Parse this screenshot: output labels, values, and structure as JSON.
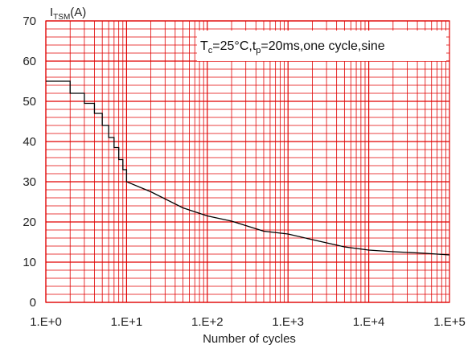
{
  "chart_data": {
    "type": "line",
    "xscale": "log",
    "yscale": "linear",
    "xlim": [
      1,
      100000
    ],
    "ylim": [
      0,
      70
    ],
    "xlabel": "Number of cycles",
    "ylabel_main": "I",
    "ylabel_sub": "TSM",
    "ylabel_unit": "(A)",
    "annotation": {
      "t1": "T",
      "t1_sub": "c",
      "mid": "=25°C,t",
      "t2_sub": "p",
      "tail": "=20ms,one cycle,sine"
    },
    "x_ticks": [
      {
        "value": 1,
        "label": "1.E+0"
      },
      {
        "value": 10,
        "label": "1.E+1"
      },
      {
        "value": 100,
        "label": "1.E+2"
      },
      {
        "value": 1000,
        "label": "1.E+3"
      },
      {
        "value": 10000,
        "label": "1.E+4"
      },
      {
        "value": 100000,
        "label": "1.E+5"
      }
    ],
    "y_ticks": [
      0,
      10,
      20,
      30,
      40,
      50,
      60,
      70
    ],
    "grid": true,
    "grid_color": "#e00000",
    "line_color": "#000000",
    "series": [
      {
        "values": [
          {
            "x": 1,
            "y": 55.0
          },
          {
            "x": 2,
            "y": 55.0
          },
          {
            "x": 2,
            "y": 52.0
          },
          {
            "x": 3,
            "y": 52.0
          },
          {
            "x": 3,
            "y": 49.5
          },
          {
            "x": 4,
            "y": 49.5
          },
          {
            "x": 4,
            "y": 47.0
          },
          {
            "x": 5,
            "y": 47.0
          },
          {
            "x": 5,
            "y": 44.0
          },
          {
            "x": 6,
            "y": 44.0
          },
          {
            "x": 6,
            "y": 41.0
          },
          {
            "x": 7,
            "y": 41.0
          },
          {
            "x": 7,
            "y": 38.5
          },
          {
            "x": 8,
            "y": 38.5
          },
          {
            "x": 8,
            "y": 35.5
          },
          {
            "x": 9,
            "y": 35.5
          },
          {
            "x": 9,
            "y": 33.0
          },
          {
            "x": 10,
            "y": 33.0
          },
          {
            "x": 10,
            "y": 30.0
          },
          {
            "x": 20,
            "y": 27.5
          },
          {
            "x": 50,
            "y": 23.5
          },
          {
            "x": 100,
            "y": 21.5
          },
          {
            "x": 200,
            "y": 20.2
          },
          {
            "x": 500,
            "y": 17.7
          },
          {
            "x": 1000,
            "y": 17.0
          },
          {
            "x": 2000,
            "y": 15.6
          },
          {
            "x": 5000,
            "y": 13.8
          },
          {
            "x": 10000,
            "y": 13.0
          },
          {
            "x": 20000,
            "y": 12.6
          },
          {
            "x": 50000,
            "y": 12.2
          },
          {
            "x": 100000,
            "y": 11.8
          }
        ]
      }
    ]
  }
}
